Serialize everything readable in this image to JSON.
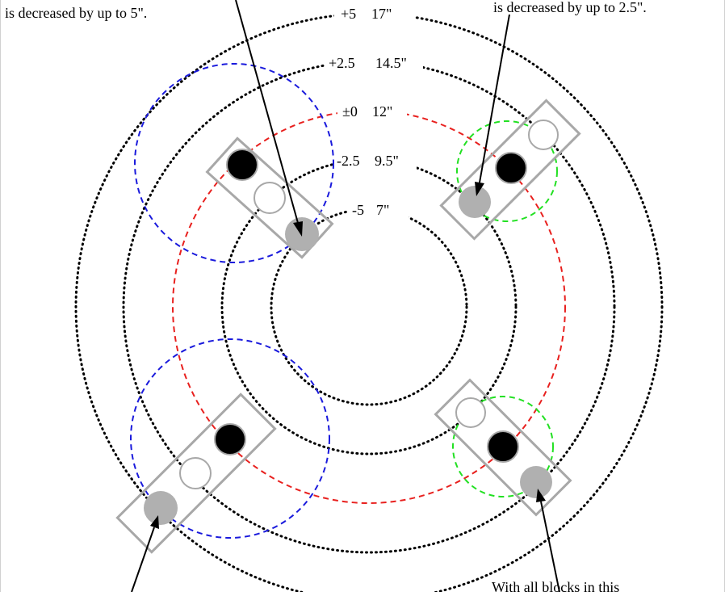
{
  "rings": [
    {
      "id": "plus5",
      "offset": "+5",
      "size": "17\"",
      "color": "#000000",
      "style": "dotted"
    },
    {
      "id": "plus2_5",
      "offset": "+2.5",
      "size": "14.5\"",
      "color": "#000000",
      "style": "dotted"
    },
    {
      "id": "zero",
      "offset": "±0",
      "size": "12\"",
      "color": "#e8201e",
      "style": "dashed"
    },
    {
      "id": "minus2_5",
      "offset": "-2.5",
      "size": "9.5\"",
      "color": "#000000",
      "style": "dotted"
    },
    {
      "id": "minus5",
      "offset": "-5",
      "size": "7\"",
      "color": "#000000",
      "style": "dotted"
    }
  ],
  "annotations": {
    "top_left": "is decreased by up to 5\".",
    "top_right": "is decreased by up to 2.5\".",
    "bottom_right": "With all blocks in this"
  },
  "colors": {
    "hole_filled": "#000000",
    "hole_shifted": "#b0b0b0",
    "hole_empty": "#ffffff",
    "block_outline": "#a8a8a8",
    "blue_circle": "#1a1adc",
    "green_circle": "#22e022",
    "zero_ring": "#e8201e"
  }
}
